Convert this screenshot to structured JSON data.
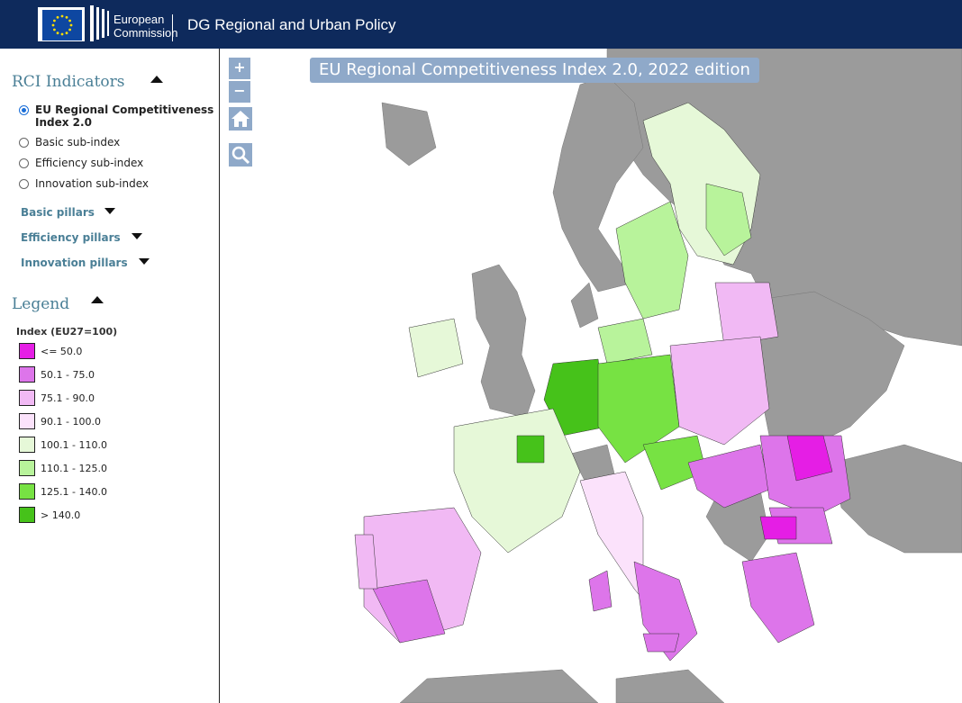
{
  "header": {
    "logo_text_line1": "European",
    "logo_text_line2": "Commission",
    "site_title": "DG Regional and Urban Policy"
  },
  "sidebar": {
    "indicators_title": "RCI Indicators",
    "indicators": [
      {
        "label": "EU Regional Competitiveness Index 2.0",
        "selected": true
      },
      {
        "label": "Basic sub-index",
        "selected": false
      },
      {
        "label": "Efficiency sub-index",
        "selected": false
      },
      {
        "label": "Innovation sub-index",
        "selected": false
      }
    ],
    "pillars": [
      {
        "label": "Basic pillars"
      },
      {
        "label": "Efficiency pillars"
      },
      {
        "label": "Innovation pillars"
      }
    ],
    "legend_title": "Legend",
    "legend_subtitle": "Index (EU27=100)",
    "legend_items": [
      {
        "label": "<= 50.0",
        "color": "#e51ee5"
      },
      {
        "label": "50.1 - 75.0",
        "color": "#dd75ea"
      },
      {
        "label": "75.1 - 90.0",
        "color": "#f1b9f4"
      },
      {
        "label": "90.1 - 100.0",
        "color": "#fbe2fb"
      },
      {
        "label": "100.1 - 110.0",
        "color": "#e6f8d8"
      },
      {
        "label": "110.1 - 125.0",
        "color": "#b8f39b"
      },
      {
        "label": "125.1 - 140.0",
        "color": "#77e243"
      },
      {
        "label": "> 140.0",
        "color": "#46c21a"
      }
    ]
  },
  "map": {
    "title": "EU Regional Competitiveness Index 2.0, 2022 edition",
    "zoom_in_label": "+",
    "zoom_out_label": "−",
    "home_icon": "home-icon",
    "search_icon": "magnifier-icon",
    "non_eu_color": "#9b9b9b"
  }
}
